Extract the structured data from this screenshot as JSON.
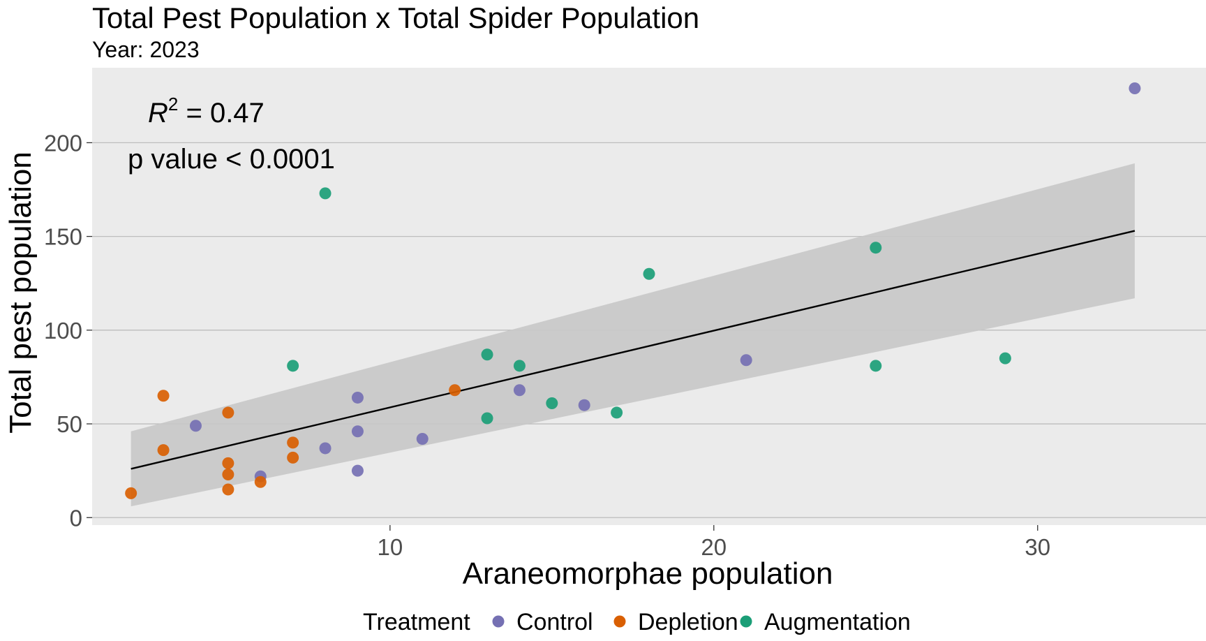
{
  "chart_data": {
    "type": "scatter",
    "title": "Total Pest Population x Total Spider Population",
    "subtitle": "Year: 2023",
    "xlabel": "Araneomorphae population",
    "ylabel": "Total pest population",
    "xlim": [
      0.8,
      35.2
    ],
    "ylim": [
      -4,
      240
    ],
    "x_ticks": [
      10,
      20,
      30
    ],
    "y_ticks": [
      0,
      50,
      100,
      150,
      200
    ],
    "grid": true,
    "annotations": {
      "r2_label": "R",
      "r2_sup": "2",
      "r2_value": " = 0.47",
      "p_value": "p value < 0.0001"
    },
    "legend": {
      "title": "Treatment",
      "position": "bottom",
      "entries": [
        {
          "name": "Control",
          "color": "#7570b3"
        },
        {
          "name": "Depletion",
          "color": "#d95f02"
        },
        {
          "name": "Augmentation",
          "color": "#1b9e77"
        }
      ]
    },
    "series": [
      {
        "name": "Control",
        "color": "#7570b3",
        "points": [
          [
            4,
            49
          ],
          [
            6,
            22
          ],
          [
            8,
            37
          ],
          [
            9,
            64
          ],
          [
            9,
            46
          ],
          [
            9,
            25
          ],
          [
            11,
            42
          ],
          [
            14,
            68
          ],
          [
            16,
            60
          ],
          [
            21,
            84
          ],
          [
            33,
            229
          ]
        ]
      },
      {
        "name": "Depletion",
        "color": "#d95f02",
        "points": [
          [
            2,
            13
          ],
          [
            3,
            65
          ],
          [
            3,
            36
          ],
          [
            5,
            56
          ],
          [
            5,
            29
          ],
          [
            5,
            23
          ],
          [
            5,
            15
          ],
          [
            6,
            19
          ],
          [
            7,
            40
          ],
          [
            7,
            32
          ],
          [
            12,
            68
          ]
        ]
      },
      {
        "name": "Augmentation",
        "color": "#1b9e77",
        "points": [
          [
            7,
            81
          ],
          [
            8,
            173
          ],
          [
            13,
            87
          ],
          [
            13,
            53
          ],
          [
            14,
            81
          ],
          [
            15,
            61
          ],
          [
            17,
            56
          ],
          [
            18,
            130
          ],
          [
            25,
            144
          ],
          [
            25,
            81
          ],
          [
            29,
            85
          ]
        ]
      }
    ],
    "fit": {
      "type": "linear",
      "x_range": [
        2,
        33
      ],
      "line_color": "#000000",
      "band_color": "#c8c8c8",
      "y_at": [
        26,
        153
      ],
      "band_lower": [
        6,
        117
      ],
      "band_upper": [
        46,
        189
      ]
    }
  }
}
